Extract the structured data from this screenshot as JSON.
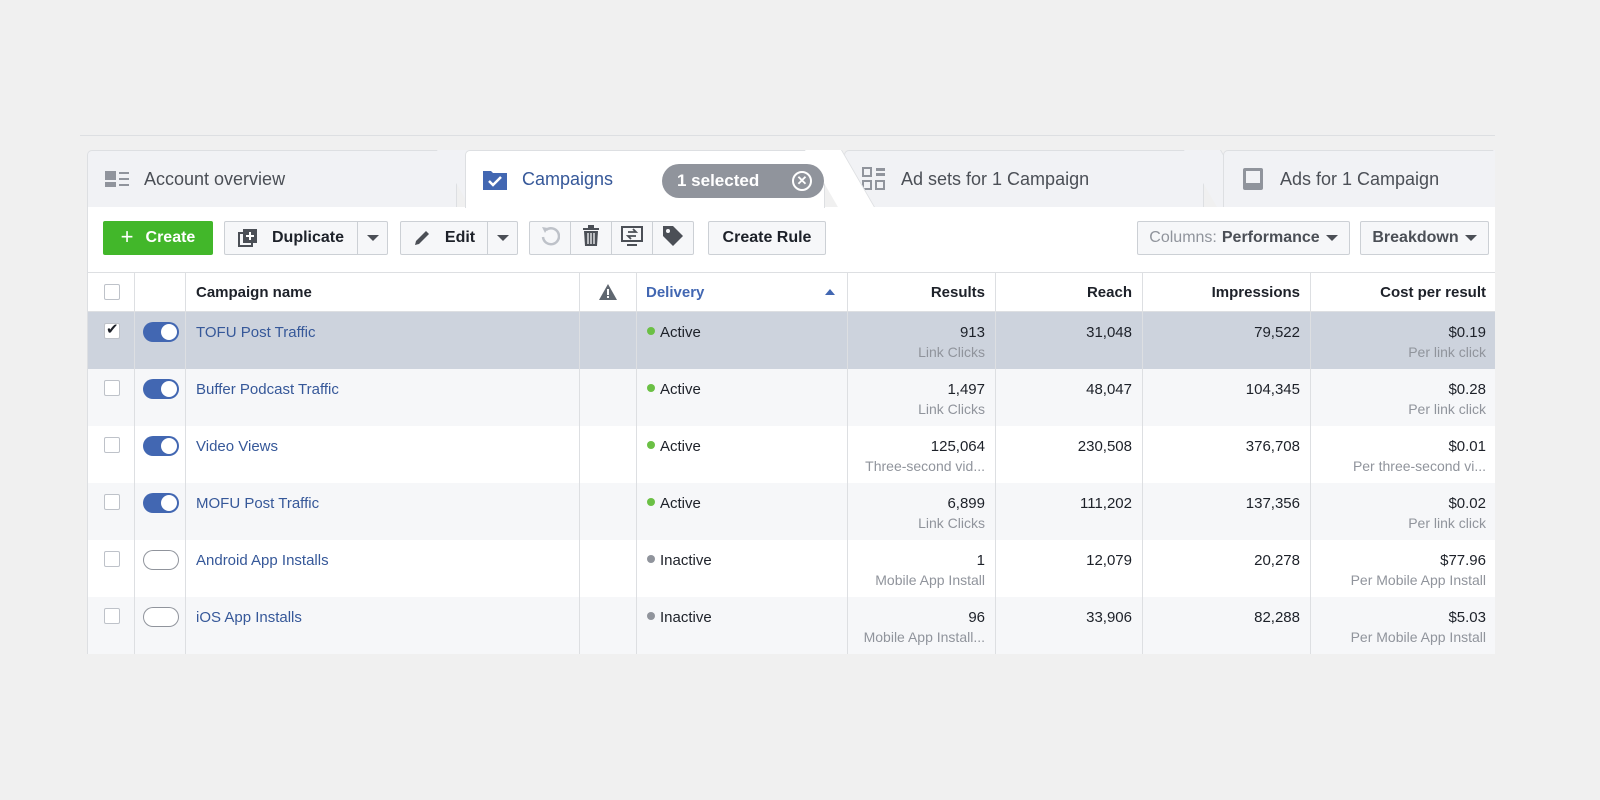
{
  "tabs": {
    "account_overview": "Account overview",
    "campaigns": "Campaigns",
    "selected_badge": "1 selected",
    "ad_sets": "Ad sets for 1 Campaign",
    "ads": "Ads for 1 Campaign"
  },
  "toolbar": {
    "create": "Create",
    "duplicate": "Duplicate",
    "edit": "Edit",
    "create_rule": "Create Rule",
    "columns_prefix": "Columns:",
    "columns_value": "Performance",
    "breakdown": "Breakdown"
  },
  "table": {
    "headers": {
      "campaign_name": "Campaign name",
      "delivery": "Delivery",
      "results": "Results",
      "reach": "Reach",
      "impressions": "Impressions",
      "cost_per_result": "Cost per result"
    },
    "rows": [
      {
        "name": "TOFU Post Traffic",
        "on": true,
        "checked": true,
        "delivery": "Active",
        "results": "913",
        "results_sub": "Link Clicks",
        "reach": "31,048",
        "impressions": "79,522",
        "cost": "$0.19",
        "cost_sub": "Per link click"
      },
      {
        "name": "Buffer Podcast Traffic",
        "on": true,
        "checked": false,
        "delivery": "Active",
        "results": "1,497",
        "results_sub": "Link Clicks",
        "reach": "48,047",
        "impressions": "104,345",
        "cost": "$0.28",
        "cost_sub": "Per link click"
      },
      {
        "name": "Video Views",
        "on": true,
        "checked": false,
        "delivery": "Active",
        "results": "125,064",
        "results_sub": "Three-second vid...",
        "reach": "230,508",
        "impressions": "376,708",
        "cost": "$0.01",
        "cost_sub": "Per three-second vi..."
      },
      {
        "name": "MOFU Post Traffic",
        "on": true,
        "checked": false,
        "delivery": "Active",
        "results": "6,899",
        "results_sub": "Link Clicks",
        "reach": "111,202",
        "impressions": "137,356",
        "cost": "$0.02",
        "cost_sub": "Per link click"
      },
      {
        "name": "Android App Installs",
        "on": false,
        "checked": false,
        "delivery": "Inactive",
        "results": "1",
        "results_sub": "Mobile App Install",
        "reach": "12,079",
        "impressions": "20,278",
        "cost": "$77.96",
        "cost_sub": "Per Mobile App Install"
      },
      {
        "name": "iOS App Installs",
        "on": false,
        "checked": false,
        "delivery": "Inactive",
        "results": "96",
        "results_sub": "Mobile App Install...",
        "reach": "33,906",
        "impressions": "82,288",
        "cost": "$5.03",
        "cost_sub": "Per Mobile App Install"
      }
    ]
  },
  "colors": {
    "accent": "#4267b2",
    "create_green": "#42b72a",
    "active_dot": "#6bc045",
    "inactive_dot": "#90949c",
    "selected_row": "#cdd3dd"
  },
  "icons": {
    "account_overview": "account-overview-icon",
    "campaigns": "folder-check-icon",
    "ad_sets": "grid-icon",
    "ads": "ad-icon",
    "duplicate": "duplicate-icon",
    "edit": "pencil-icon",
    "undo": "undo-icon",
    "trash": "trash-icon",
    "move": "move-icon",
    "tag": "tag-icon",
    "warning": "warning-icon"
  }
}
